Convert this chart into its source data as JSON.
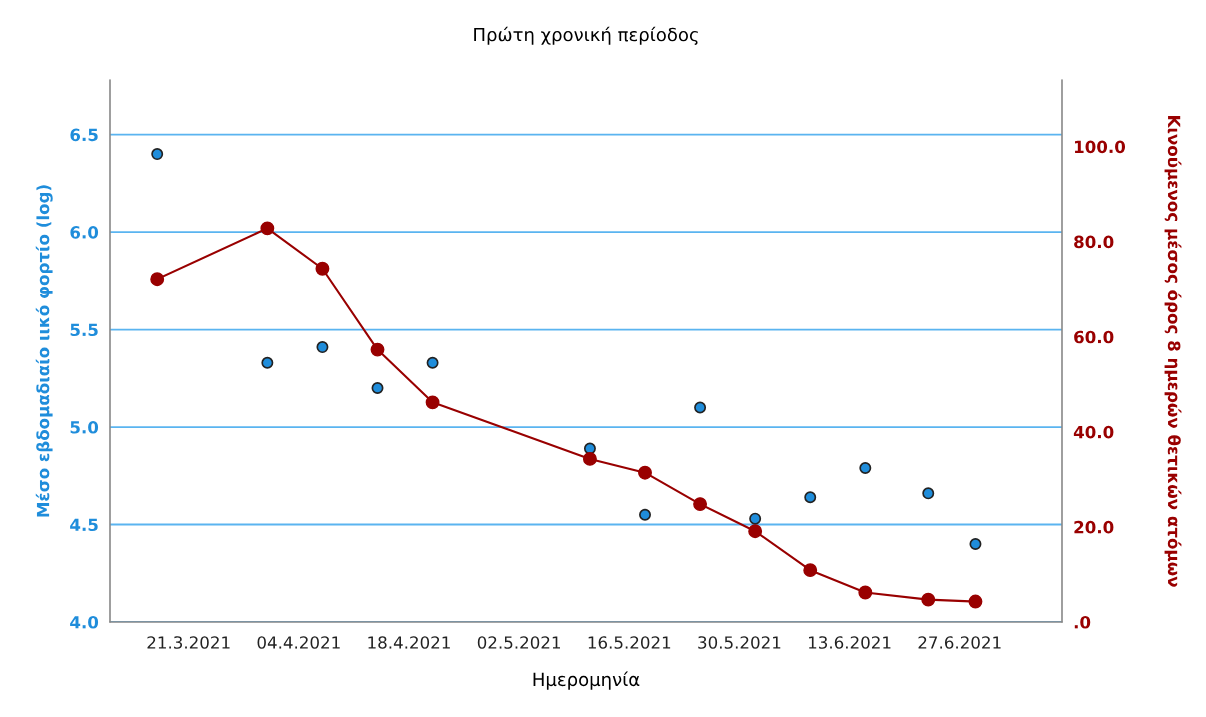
{
  "chart_data": {
    "type": "scatter",
    "title": "Πρώτη χρονική περίοδος",
    "xlabel": "Ημερομηνία",
    "ylabel": "Μέσο εβδομαδιαίο ιικό φορτίο (log)",
    "y2label": "Κινούμενος μέσος όρος 8 ημερών θετικών ατόμων",
    "x": [
      "2021-03-17",
      "2021-03-31",
      "2021-04-07",
      "2021-04-14",
      "2021-04-21",
      "2021-05-11",
      "2021-05-18",
      "2021-05-25",
      "2021-06-01",
      "2021-06-08",
      "2021-06-15",
      "2021-06-23",
      "2021-06-29"
    ],
    "series": [
      {
        "color": "#1f8ddb",
        "marker": "circle",
        "values": [
          6.4,
          5.33,
          5.41,
          5.2,
          5.33,
          4.89,
          4.55,
          5.1,
          4.53,
          4.64,
          4.79,
          4.66,
          4.4
        ]
      },
      {
        "type": "line",
        "axis": "y2",
        "color": "#990000",
        "marker": "circle",
        "line_style": "solid",
        "values": [
          72.1,
          82.8,
          74.3,
          57.3,
          46.2,
          34.3,
          31.4,
          24.8,
          19.1,
          10.9,
          6.2,
          4.7,
          4.3
        ]
      }
    ],
    "xlim": [
      "2021-03-11",
      "2021-07-10"
    ],
    "xticks": [
      {
        "value": "2021-03-21",
        "label": "21.3.2021"
      },
      {
        "value": "2021-04-04",
        "label": "04.4.2021"
      },
      {
        "value": "2021-04-18",
        "label": "18.4.2021"
      },
      {
        "value": "2021-05-02",
        "label": "02.5.2021"
      },
      {
        "value": "2021-05-16",
        "label": "16.5.2021"
      },
      {
        "value": "2021-05-30",
        "label": "30.5.2021"
      },
      {
        "value": "2021-06-13",
        "label": "13.6.2021"
      },
      {
        "value": "2021-06-27",
        "label": "27.6.2021"
      }
    ],
    "ylim": [
      4.0,
      6.78
    ],
    "yticks": [
      {
        "value": 4.0,
        "label": "4.0"
      },
      {
        "value": 4.5,
        "label": "4.5"
      },
      {
        "value": 5.0,
        "label": "5.0"
      },
      {
        "value": 5.5,
        "label": "5.5"
      },
      {
        "value": 6.0,
        "label": "6.0"
      },
      {
        "value": 6.5,
        "label": "6.5"
      }
    ],
    "y2lim": [
      0,
      114
    ],
    "y2ticks": [
      {
        "value": 0,
        "label": ".0"
      },
      {
        "value": 20,
        "label": "20.0"
      },
      {
        "value": 40,
        "label": "40.0"
      },
      {
        "value": 60,
        "label": "60.0"
      },
      {
        "value": 80,
        "label": "80.0"
      },
      {
        "value": 100,
        "label": "100.0"
      }
    ],
    "grid": "y"
  }
}
